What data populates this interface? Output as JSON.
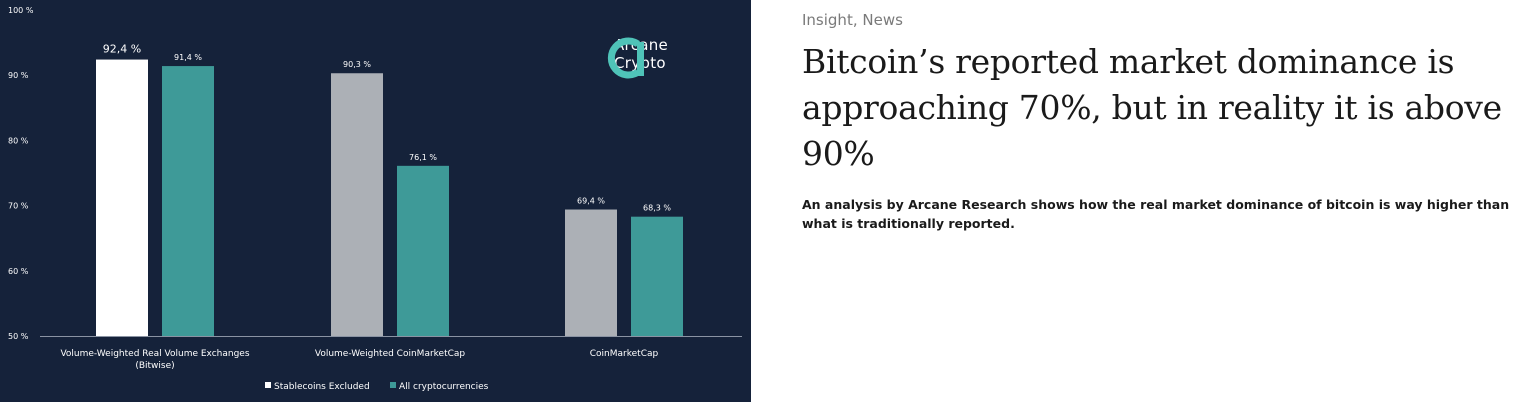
{
  "article": {
    "category_1": "Insight",
    "category_sep": ",",
    "category_2": "News",
    "headline": "Bitcoin’s reported market dominance is approaching 70%, but in reality it is above 90%",
    "lede": "An analysis by Arcane Research shows how the real market dominance of bitcoin is way higher than what is traditionally reported."
  },
  "logo": {
    "line1": "Arcane",
    "line2": "Crypto",
    "accent_color": "#4fc3b8"
  },
  "chart_data": {
    "type": "bar",
    "categories": [
      [
        "Volume-Weighted Real Volume Exchanges",
        "(Bitwise)"
      ],
      [
        "Volume-Weighted CoinMarketCap"
      ],
      [
        "CoinMarketCap"
      ]
    ],
    "series": [
      {
        "name": "Stablecoins Excluded",
        "values": [
          92.4,
          90.3,
          69.4
        ],
        "labels": [
          "92,4 %",
          "90,3 %",
          "69,4 %"
        ],
        "colors": [
          "#ffffff",
          "#acb0b6",
          "#acb0b6"
        ]
      },
      {
        "name": "All cryptocurrencies",
        "values": [
          91.4,
          76.1,
          68.3
        ],
        "labels": [
          "91,4 %",
          "76,1 %",
          "68,3 %"
        ],
        "colors": [
          "#3e9a98",
          "#3e9a98",
          "#3e9a98"
        ]
      }
    ],
    "y_ticks": [
      "50 %",
      "60 %",
      "70 %",
      "80 %",
      "90 %",
      "100 %"
    ],
    "ylim": [
      50,
      100
    ],
    "grid": false,
    "legend": "bottom-center",
    "legend_entries": [
      {
        "label": "Stablecoins Excluded",
        "color": "#ffffff"
      },
      {
        "label": "All cryptocurrencies",
        "color": "#3e9a98"
      }
    ],
    "background": "#15223a"
  }
}
